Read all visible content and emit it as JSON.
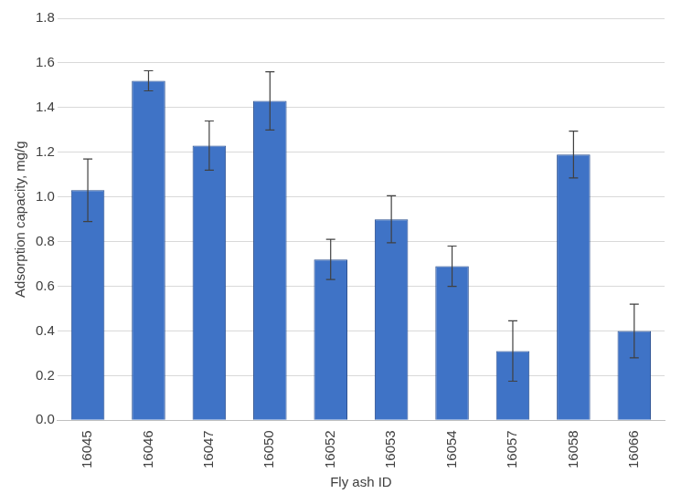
{
  "chart_data": {
    "type": "bar",
    "x_label": "Fly ash ID",
    "y_label": "Adsorption capacity, mg/g",
    "categories": [
      "16045",
      "16046",
      "16047",
      "16050",
      "16052",
      "16053",
      "16054",
      "16057",
      "16058",
      "16066"
    ],
    "values": [
      1.03,
      1.52,
      1.23,
      1.43,
      0.72,
      0.9,
      0.69,
      0.31,
      1.19,
      0.4
    ],
    "errors": [
      0.14,
      0.045,
      0.11,
      0.13,
      0.09,
      0.105,
      0.09,
      0.135,
      0.105,
      0.12
    ],
    "color": "#3f73c6",
    "ylim": [
      0,
      1.8
    ],
    "yticks": [
      {
        "value": 0,
        "label": "0.0"
      },
      0.2,
      0.4,
      0.6,
      0.8,
      {
        "value": 1,
        "label": "1.0"
      },
      1.2,
      1.4,
      1.6,
      1.8
    ],
    "grid": true
  }
}
